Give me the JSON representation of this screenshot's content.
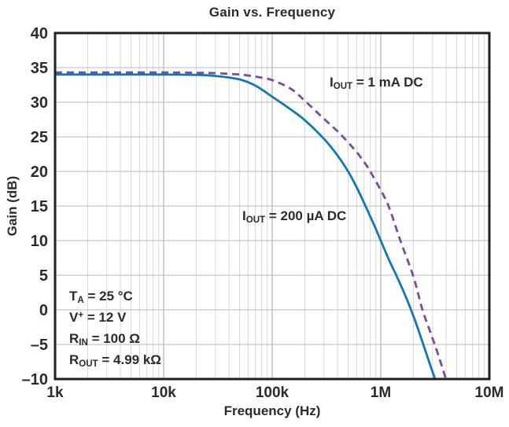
{
  "figure": {
    "background": "#ffffff",
    "text_color": "#2b2b2b"
  },
  "chart_data": {
    "type": "line",
    "title": "Gain vs. Frequency",
    "xlabel": "Frequency (Hz)",
    "ylabel": "Gain (dB)",
    "x_scale": "log",
    "xlim": [
      1000,
      10000000
    ],
    "ylim": [
      -10,
      40
    ],
    "grid": true,
    "legend_position": "inline-annotations",
    "x_ticks": [
      {
        "value": 1000,
        "label": "1k"
      },
      {
        "value": 10000,
        "label": "10k"
      },
      {
        "value": 100000,
        "label": "100k"
      },
      {
        "value": 1000000,
        "label": "1M"
      },
      {
        "value": 10000000,
        "label": "10M"
      }
    ],
    "y_ticks": [
      {
        "value": 40,
        "label": "40"
      },
      {
        "value": 35,
        "label": "35"
      },
      {
        "value": 30,
        "label": "30"
      },
      {
        "value": 25,
        "label": "25"
      },
      {
        "value": 20,
        "label": "20"
      },
      {
        "value": 15,
        "label": "15"
      },
      {
        "value": 10,
        "label": "10"
      },
      {
        "value": 5,
        "label": "5"
      },
      {
        "value": 0,
        "label": "0"
      },
      {
        "value": -5,
        "label": "–5"
      },
      {
        "value": -10,
        "label": "–10"
      }
    ],
    "series": [
      {
        "id": "iout-1ma",
        "label": {
          "pre": "I",
          "sub": "OUT",
          "post": " = 1 mA DC"
        },
        "color": "#7c4b9e",
        "style": "dashed",
        "points": [
          [
            1000,
            34.3
          ],
          [
            3000,
            34.3
          ],
          [
            10000,
            34.3
          ],
          [
            20000,
            34.25
          ],
          [
            30000,
            34.2
          ],
          [
            50000,
            34.0
          ],
          [
            70000,
            33.7
          ],
          [
            100000,
            33.2
          ],
          [
            150000,
            31.9
          ],
          [
            200000,
            30.2
          ],
          [
            300000,
            27.6
          ],
          [
            400000,
            25.8
          ],
          [
            500000,
            24.2
          ],
          [
            600000,
            22.8
          ],
          [
            700000,
            21.4
          ],
          [
            800000,
            20.0
          ],
          [
            1000000,
            17.3
          ],
          [
            1200000,
            14.7
          ],
          [
            1500000,
            10.2
          ],
          [
            2000000,
            4.8
          ],
          [
            2400000,
            0.2
          ],
          [
            2800000,
            -2.8
          ],
          [
            3300000,
            -6.0
          ],
          [
            3980000,
            -10.0
          ]
        ]
      },
      {
        "id": "iout-200ua",
        "label": {
          "pre": "I",
          "sub": "OUT",
          "post": " = 200 µA DC"
        },
        "color": "#1278b5",
        "style": "solid",
        "points": [
          [
            1000,
            34.0
          ],
          [
            3000,
            34.0
          ],
          [
            10000,
            34.0
          ],
          [
            20000,
            33.95
          ],
          [
            30000,
            33.8
          ],
          [
            50000,
            33.3
          ],
          [
            70000,
            32.4
          ],
          [
            100000,
            30.8
          ],
          [
            150000,
            28.9
          ],
          [
            200000,
            27.4
          ],
          [
            300000,
            24.7
          ],
          [
            400000,
            22.3
          ],
          [
            500000,
            20.0
          ],
          [
            600000,
            17.7
          ],
          [
            700000,
            15.5
          ],
          [
            800000,
            13.5
          ],
          [
            900000,
            11.7
          ],
          [
            1000000,
            10.0
          ],
          [
            1200000,
            7.1
          ],
          [
            1400000,
            4.9
          ],
          [
            1700000,
            1.9
          ],
          [
            2000000,
            -0.9
          ],
          [
            2300000,
            -3.6
          ],
          [
            2600000,
            -6.1
          ],
          [
            2900000,
            -8.3
          ],
          [
            3160000,
            -10.0
          ]
        ]
      }
    ],
    "conditions": [
      {
        "pre": "T",
        "sub": "A",
        "sup": "",
        "post": " = 25 °C"
      },
      {
        "pre": "V",
        "sub": "",
        "sup": "+",
        "post": " = 12 V"
      },
      {
        "pre": "R",
        "sub": "IN",
        "sup": "",
        "post": " = 100 Ω"
      },
      {
        "pre": "R",
        "sub": "OUT",
        "sup": "",
        "post": " = 4.99 kΩ"
      }
    ],
    "colors": {
      "border": "#1f1f1f",
      "grid_minor": "#d8d8d8",
      "grid_major": "#bdbdbd",
      "grid_horizontal": "#c6c6c6",
      "text": "#2b2b2b"
    }
  }
}
